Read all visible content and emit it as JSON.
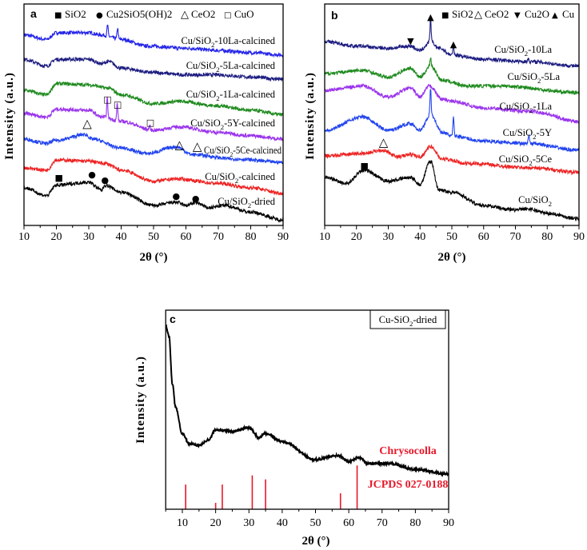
{
  "chart_data": [
    {
      "id": "a",
      "type": "line",
      "panel_label": "a",
      "xlabel": "2θ (°)",
      "ylabel": "Intensity (a.u.)",
      "xlim": [
        10,
        90
      ],
      "ylim": [
        0,
        100
      ],
      "xticks": [
        "10",
        "20",
        "30",
        "40",
        "50",
        "60",
        "70",
        "80",
        "90"
      ],
      "legend": [
        {
          "symbol": "■",
          "text": "SiO2"
        },
        {
          "symbol": "●",
          "text": "Cu2SiO5(OH)2"
        },
        {
          "symbol": "△",
          "text": "CeO2"
        },
        {
          "symbol": "□",
          "text": "CuO"
        }
      ],
      "series": [
        {
          "name": "Cu/SiO2-10La-calcined",
          "color": "#2424e8",
          "points": [
            [
              10,
              86
            ],
            [
              17,
              84
            ],
            [
              20,
              87
            ],
            [
              30,
              87
            ],
            [
              34,
              86
            ],
            [
              40,
              84
            ],
            [
              48,
              81
            ],
            [
              60,
              80
            ],
            [
              70,
              79
            ],
            [
              80,
              78
            ],
            [
              90,
              77
            ]
          ],
          "peaks": [
            [
              35.8,
              5
            ],
            [
              38.9,
              5
            ]
          ]
        },
        {
          "name": "Cu/SiO2-5La-calcined",
          "color": "#1c1c80",
          "points": [
            [
              10,
              75
            ],
            [
              17,
              72
            ],
            [
              20,
              75
            ],
            [
              30,
              75
            ],
            [
              34,
              73
            ],
            [
              36,
              74
            ],
            [
              40,
              71
            ],
            [
              50,
              69
            ],
            [
              60,
              68
            ],
            [
              70,
              68
            ],
            [
              80,
              67
            ],
            [
              90,
              66
            ]
          ],
          "peaks": []
        },
        {
          "name": "Cu/SiO2-1La-calcined",
          "color": "#1e8a1e",
          "points": [
            [
              10,
              61
            ],
            [
              17,
              59
            ],
            [
              20,
              64
            ],
            [
              30,
              63.5
            ],
            [
              36,
              62
            ],
            [
              40,
              59
            ],
            [
              50,
              55
            ],
            [
              58,
              56
            ],
            [
              70,
              54
            ],
            [
              80,
              52
            ],
            [
              90,
              50
            ]
          ],
          "peaks": []
        },
        {
          "name": "Cu/SiO2-5Y-calcined",
          "color": "#9a34ec",
          "points": [
            [
              10,
              50.5
            ],
            [
              17,
              49
            ],
            [
              20,
              52.5
            ],
            [
              30,
              52
            ],
            [
              34,
              49
            ],
            [
              40,
              47
            ],
            [
              50,
              43
            ],
            [
              58,
              44.5
            ],
            [
              70,
              42
            ],
            [
              80,
              40.5
            ],
            [
              90,
              39
            ]
          ],
          "peaks": [
            [
              35.7,
              9
            ],
            [
              38.8,
              8
            ],
            [
              48.8,
              2
            ]
          ]
        },
        {
          "name": "Cu/SiO2-5Ce-calcined",
          "color": "#2244ee",
          "points": [
            [
              10,
              39
            ],
            [
              17,
              37
            ],
            [
              20,
              38.5
            ],
            [
              29,
              41
            ],
            [
              31,
              39
            ],
            [
              40,
              35
            ],
            [
              48,
              32.5
            ],
            [
              57,
              35.5
            ],
            [
              62,
              32
            ],
            [
              75,
              30
            ],
            [
              90,
              28.5
            ]
          ],
          "peaks": []
        },
        {
          "name": "Cu/SiO2-calcined",
          "color": "#ee2222",
          "points": [
            [
              10,
              26
            ],
            [
              17,
              25
            ],
            [
              20,
              29.6
            ],
            [
              30,
              29
            ],
            [
              35,
              28
            ],
            [
              40,
              25
            ],
            [
              50,
              20
            ],
            [
              57,
              21
            ],
            [
              70,
              19
            ],
            [
              80,
              17
            ],
            [
              90,
              14.5
            ]
          ],
          "peaks": []
        },
        {
          "name": "Cu/SiO2-dried",
          "color": "#000000",
          "points": [
            [
              10,
              17
            ],
            [
              17,
              13.5
            ],
            [
              20,
              18.2
            ],
            [
              30,
              19.5
            ],
            [
              34,
              16
            ],
            [
              35,
              18.2
            ],
            [
              40,
              15
            ],
            [
              50,
              9
            ],
            [
              57,
              10.5
            ],
            [
              60,
              9
            ],
            [
              63,
              10.3
            ],
            [
              67,
              8
            ],
            [
              72,
              9
            ],
            [
              80,
              6
            ],
            [
              90,
              2.5
            ]
          ],
          "peaks": []
        }
      ],
      "annotations": [
        {
          "symbol": "■",
          "x": 20.8,
          "y": 22
        },
        {
          "symbol": "●",
          "x": 31,
          "y": 23.5
        },
        {
          "symbol": "●",
          "x": 35,
          "y": 21
        },
        {
          "symbol": "●",
          "x": 57,
          "y": 13.7
        },
        {
          "symbol": "●",
          "x": 63,
          "y": 12.6
        },
        {
          "symbol": "□",
          "x": 35.8,
          "y": 57.4
        },
        {
          "symbol": "□",
          "x": 38.9,
          "y": 55
        },
        {
          "symbol": "□",
          "x": 49,
          "y": 47
        },
        {
          "symbol": "△",
          "x": 29.5,
          "y": 46
        },
        {
          "symbol": "△",
          "x": 58,
          "y": 36.5
        },
        {
          "symbol": "△",
          "x": 63.5,
          "y": 35.7
        }
      ]
    },
    {
      "id": "b",
      "type": "line",
      "panel_label": "b",
      "xlabel": "2θ (°)",
      "ylabel": "Intensity (a.u.)",
      "xlim": [
        10,
        90
      ],
      "ylim": [
        0,
        100
      ],
      "xticks": [
        "10",
        "20",
        "30",
        "40",
        "50",
        "60",
        "70",
        "80",
        "90"
      ],
      "legend": [
        {
          "symbol": "■",
          "text": "SiO2"
        },
        {
          "symbol": "△",
          "text": "CeO2"
        },
        {
          "symbol": "▼",
          "text": "Cu2O"
        },
        {
          "symbol": "▲",
          "text": "Cu"
        }
      ],
      "series": [
        {
          "name": "Cu/SiO2-10La",
          "color": "#1c1c80",
          "points": [
            [
              10,
              83
            ],
            [
              20,
              81
            ],
            [
              30,
              80
            ],
            [
              37,
              81
            ],
            [
              40,
              79
            ],
            [
              43.3,
              83
            ],
            [
              46,
              80
            ],
            [
              50,
              77
            ],
            [
              60,
              75
            ],
            [
              74,
              74
            ],
            [
              90,
              72
            ]
          ],
          "peaks": [
            [
              43.3,
              10
            ],
            [
              50.5,
              4
            ],
            [
              74,
              1.5
            ]
          ]
        },
        {
          "name": "Cu/SiO2-5La",
          "color": "#1e8a1e",
          "points": [
            [
              10,
              68.6
            ],
            [
              22,
              70
            ],
            [
              30,
              67
            ],
            [
              37,
              71
            ],
            [
              40,
              67
            ],
            [
              43.3,
              72
            ],
            [
              47,
              65.5
            ],
            [
              55,
              63
            ],
            [
              65,
              63
            ],
            [
              90,
              60
            ]
          ],
          "peaks": [
            [
              43.3,
              4
            ]
          ]
        },
        {
          "name": "Cu/SiO2-1La",
          "color": "#9a34ec",
          "points": [
            [
              10,
              61
            ],
            [
              22,
              63
            ],
            [
              30,
              58
            ],
            [
              37,
              62
            ],
            [
              40,
              58
            ],
            [
              43,
              63
            ],
            [
              47,
              57
            ],
            [
              50,
              56
            ],
            [
              60,
              53
            ],
            [
              75,
              51.5
            ],
            [
              90,
              47
            ]
          ],
          "peaks": []
        },
        {
          "name": "Cu/SiO2-5Y",
          "color": "#2244ee",
          "points": [
            [
              10,
              43
            ],
            [
              22,
              49
            ],
            [
              30,
              43
            ],
            [
              37,
              46
            ],
            [
              40,
              43
            ],
            [
              43.3,
              50
            ],
            [
              47,
              42
            ],
            [
              50,
              40.5
            ],
            [
              60,
              38
            ],
            [
              74,
              37
            ],
            [
              90,
              34
            ]
          ],
          "peaks": [
            [
              43.3,
              12
            ],
            [
              50.5,
              8
            ],
            [
              74.2,
              4
            ]
          ]
        },
        {
          "name": "Cu/SiO2-5Ce",
          "color": "#ee2222",
          "points": [
            [
              10,
              31.4
            ],
            [
              22,
              32.5
            ],
            [
              28,
              34
            ],
            [
              33,
              31
            ],
            [
              37,
              32
            ],
            [
              40,
              31
            ],
            [
              43.3,
              35.6
            ],
            [
              47,
              30
            ],
            [
              55,
              28
            ],
            [
              75,
              26
            ],
            [
              90,
              24
            ]
          ],
          "peaks": []
        },
        {
          "name": "Cu/SiO2",
          "color": "#000000",
          "points": [
            [
              10,
              21.7
            ],
            [
              17,
              19
            ],
            [
              22,
              25
            ],
            [
              30,
              20
            ],
            [
              37,
              21.7
            ],
            [
              40,
              18.5
            ],
            [
              43.3,
              29
            ],
            [
              46,
              16
            ],
            [
              50,
              15
            ],
            [
              60,
              9
            ],
            [
              70,
              7
            ],
            [
              74,
              7.5
            ],
            [
              80,
              5.5
            ],
            [
              90,
              3
            ]
          ],
          "peaks": []
        }
      ],
      "annotations": [
        {
          "symbol": "▲",
          "x": 43.3,
          "y": 94.6
        },
        {
          "symbol": "▼",
          "x": 37,
          "y": 83.8
        },
        {
          "symbol": "▲",
          "x": 50.5,
          "y": 82.3
        },
        {
          "symbol": "△",
          "x": 28.5,
          "y": 37.5
        },
        {
          "symbol": "■",
          "x": 22.5,
          "y": 27.4
        }
      ]
    },
    {
      "id": "c",
      "type": "line",
      "panel_label": "c",
      "xlabel": "2θ (°)",
      "ylabel": "Intensity (a.u.)",
      "xlim": [
        5,
        90
      ],
      "ylim": [
        0,
        100
      ],
      "xticks": [
        "10",
        "20",
        "30",
        "40",
        "50",
        "60",
        "70",
        "80",
        "90"
      ],
      "legend_box": "Cu-SiO2-dried",
      "reference_label": "Chrysocolla",
      "reference_card": "JCPDS 027-0188",
      "reference_color": "#e8182a",
      "series": [
        {
          "name": "Cu-SiO2-dried",
          "color": "#000000",
          "points": [
            [
              5,
              92
            ],
            [
              6,
              87
            ],
            [
              7,
              63
            ],
            [
              8,
              51
            ],
            [
              10,
              38
            ],
            [
              12,
              33
            ],
            [
              15,
              32
            ],
            [
              18,
              35
            ],
            [
              20,
              40
            ],
            [
              25,
              39
            ],
            [
              30,
              41
            ],
            [
              33,
              36
            ],
            [
              35,
              38
            ],
            [
              40,
              34
            ],
            [
              50,
              25
            ],
            [
              57,
              27
            ],
            [
              60,
              24
            ],
            [
              63,
              26
            ],
            [
              66,
              23
            ],
            [
              72,
              23
            ],
            [
              80,
              20
            ],
            [
              90,
              17.7
            ]
          ],
          "peaks": []
        }
      ],
      "reference_lines": [
        [
          11,
          12.4
        ],
        [
          20,
          3.2
        ],
        [
          22,
          12.4
        ],
        [
          31,
          17
        ],
        [
          35,
          15
        ],
        [
          57.5,
          8
        ],
        [
          62.5,
          22
        ]
      ]
    }
  ]
}
